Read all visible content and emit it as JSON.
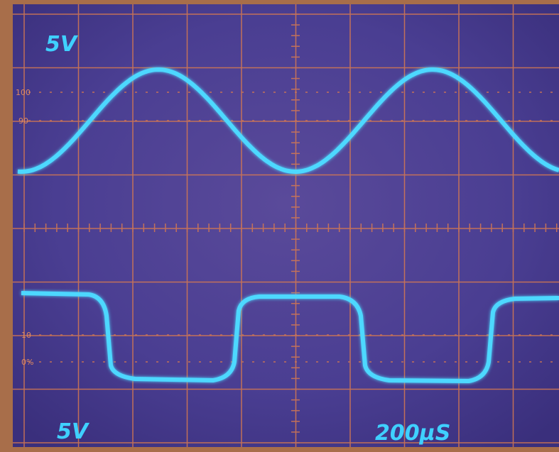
{
  "screen": {
    "channel1_scale": "5V",
    "graticule_labels": [
      "100",
      "90",
      "10",
      "0%"
    ],
    "channel2_scale": "5V",
    "timebase": "200µS"
  }
}
